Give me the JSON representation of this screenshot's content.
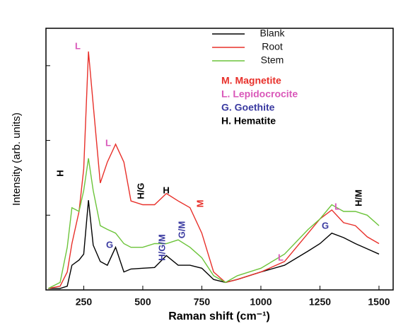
{
  "chart_data": {
    "type": "line",
    "xlabel": "Raman shift (cm⁻¹)",
    "ylabel": "Intensity (arb. units)",
    "x": [
      100,
      150,
      180,
      200,
      230,
      250,
      270,
      290,
      320,
      350,
      385,
      420,
      450,
      500,
      550,
      600,
      650,
      700,
      750,
      800,
      850,
      900,
      1000,
      1100,
      1200,
      1250,
      1300,
      1350,
      1400,
      1450,
      1500
    ],
    "series": [
      {
        "name": "Blank",
        "color": "#000000",
        "values": [
          0.02,
          0.02,
          0.05,
          0.33,
          0.4,
          0.48,
          1.2,
          0.6,
          0.38,
          0.33,
          0.57,
          0.24,
          0.28,
          0.29,
          0.3,
          0.46,
          0.33,
          0.33,
          0.29,
          0.14,
          0.1,
          0.14,
          0.24,
          0.33,
          0.52,
          0.62,
          0.76,
          0.7,
          0.62,
          0.55,
          0.48
        ]
      },
      {
        "name": "Root",
        "color": "#e8302a",
        "values": [
          0.02,
          0.05,
          0.24,
          0.62,
          1.05,
          1.62,
          3.19,
          2.48,
          1.43,
          1.71,
          1.95,
          1.71,
          1.19,
          1.14,
          1.14,
          1.29,
          1.19,
          1.1,
          0.76,
          0.24,
          0.1,
          0.14,
          0.24,
          0.38,
          0.76,
          0.95,
          1.07,
          0.9,
          0.86,
          0.71,
          0.62
        ]
      },
      {
        "name": "Stem",
        "color": "#6cc43a",
        "values": [
          0.02,
          0.1,
          0.57,
          1.1,
          1.05,
          1.33,
          1.76,
          1.33,
          0.86,
          0.81,
          0.76,
          0.62,
          0.57,
          0.57,
          0.62,
          0.62,
          0.67,
          0.57,
          0.43,
          0.19,
          0.1,
          0.19,
          0.29,
          0.48,
          0.81,
          0.95,
          1.14,
          1.05,
          1.05,
          1.0,
          0.86
        ]
      }
    ],
    "xlim": [
      90,
      1560
    ],
    "xticks": [
      250,
      500,
      750,
      1000,
      1250,
      1500
    ],
    "ylim": [
      0,
      3.5
    ],
    "yticks": [
      0,
      1,
      2,
      3
    ],
    "key": [
      {
        "text": "M. Magnetite",
        "color": "#e8302a"
      },
      {
        "text": "L. Lepidocrocite",
        "color": "#d957b9"
      },
      {
        "text": "G. Goethite",
        "color": "#3a3aa0"
      },
      {
        "text": "H. Hematite",
        "color": "#000000"
      }
    ],
    "annotations": [
      {
        "text": "L",
        "color": "#d957b9"
      },
      {
        "text": "L",
        "color": "#d957b9"
      },
      {
        "text": "H",
        "color": "#000000"
      },
      {
        "text": "H/G",
        "color": "#000000"
      },
      {
        "text": "H",
        "color": "#000000"
      },
      {
        "text": "M",
        "color": "#e8302a"
      },
      {
        "text": "G",
        "color": "#3a3aa0"
      },
      {
        "text": "H/G/M",
        "color": "#3a3aa0"
      },
      {
        "text": "G/M",
        "color": "#3a3aa0"
      },
      {
        "text": "L",
        "color": "#d957b9"
      },
      {
        "text": "G",
        "color": "#3a3aa0"
      },
      {
        "text": "L",
        "color": "#d957b9"
      },
      {
        "text": "H/M",
        "color": "#000000"
      }
    ]
  }
}
